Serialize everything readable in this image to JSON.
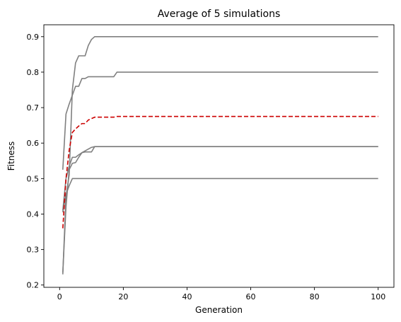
{
  "chart_data": {
    "type": "line",
    "title": "Average of 5 simulations",
    "xlabel": "Generation",
    "ylabel": "Fitness",
    "xlim": [
      -4.95,
      104.95
    ],
    "ylim": [
      0.1935,
      0.9335
    ],
    "xticks": [
      0,
      20,
      40,
      60,
      80,
      100
    ],
    "yticks": [
      0.2,
      0.3,
      0.4,
      0.5,
      0.6,
      0.7,
      0.8,
      0.9
    ],
    "ytick_labels": [
      "0.2",
      "0.3",
      "0.4",
      "0.5",
      "0.6",
      "0.7",
      "0.8",
      "0.9"
    ],
    "grid": false,
    "legend": "none",
    "series": [
      {
        "color": "#808080",
        "dash": "solid",
        "points": [
          [
            1,
            0.23
          ],
          [
            2,
            0.45
          ],
          [
            3,
            0.51
          ],
          [
            4,
            0.75
          ],
          [
            5,
            0.826
          ],
          [
            6,
            0.846
          ],
          [
            7,
            0.846
          ],
          [
            8,
            0.846
          ],
          [
            9,
            0.875
          ],
          [
            10,
            0.892
          ],
          [
            11,
            0.9
          ],
          [
            100,
            0.9
          ]
        ]
      },
      {
        "color": "#808080",
        "dash": "solid",
        "points": [
          [
            1,
            0.525
          ],
          [
            2,
            0.682
          ],
          [
            3,
            0.71
          ],
          [
            4,
            0.735
          ],
          [
            5,
            0.76
          ],
          [
            6,
            0.76
          ],
          [
            7,
            0.782
          ],
          [
            8,
            0.782
          ],
          [
            9,
            0.787
          ],
          [
            16,
            0.787
          ],
          [
            17,
            0.787
          ],
          [
            18,
            0.8
          ],
          [
            100,
            0.8
          ]
        ]
      },
      {
        "color": "#808080",
        "dash": "solid",
        "points": [
          [
            1,
            0.41
          ],
          [
            2,
            0.5
          ],
          [
            3,
            0.535
          ],
          [
            4,
            0.56
          ],
          [
            5,
            0.56
          ],
          [
            6,
            0.567
          ],
          [
            7,
            0.573
          ],
          [
            8,
            0.575
          ],
          [
            9,
            0.575
          ],
          [
            10,
            0.575
          ],
          [
            11,
            0.59
          ],
          [
            100,
            0.59
          ]
        ]
      },
      {
        "color": "#808080",
        "dash": "solid",
        "points": [
          [
            1,
            0.235
          ],
          [
            2,
            0.42
          ],
          [
            3,
            0.525
          ],
          [
            4,
            0.543
          ],
          [
            5,
            0.545
          ],
          [
            6,
            0.56
          ],
          [
            7,
            0.573
          ],
          [
            8,
            0.578
          ],
          [
            9,
            0.583
          ],
          [
            10,
            0.588
          ],
          [
            11,
            0.59
          ],
          [
            100,
            0.59
          ]
        ]
      },
      {
        "color": "#808080",
        "dash": "solid",
        "points": [
          [
            1,
            0.405
          ],
          [
            2,
            0.455
          ],
          [
            3,
            0.48
          ],
          [
            4,
            0.5
          ],
          [
            100,
            0.5
          ]
        ]
      },
      {
        "color": "#cc0000",
        "dash": "dashed",
        "points": [
          [
            1,
            0.36
          ],
          [
            2,
            0.5
          ],
          [
            3,
            0.58
          ],
          [
            4,
            0.63
          ],
          [
            5,
            0.64
          ],
          [
            6,
            0.648
          ],
          [
            7,
            0.655
          ],
          [
            8,
            0.655
          ],
          [
            9,
            0.665
          ],
          [
            10,
            0.669
          ],
          [
            11,
            0.673
          ],
          [
            12,
            0.673
          ],
          [
            17,
            0.673
          ],
          [
            18,
            0.675
          ],
          [
            100,
            0.675
          ]
        ]
      }
    ]
  }
}
